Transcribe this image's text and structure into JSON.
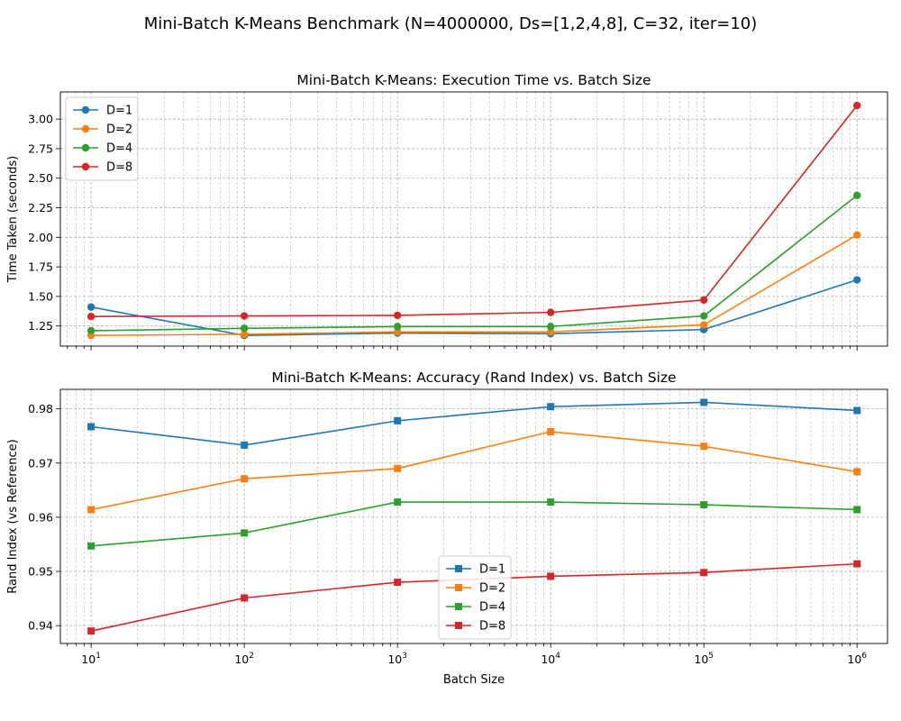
{
  "figure": {
    "suptitle": "Mini-Batch K-Means Benchmark (N=4000000, Ds=[1,2,4,8], C=32, iter=10)"
  },
  "chart_data": [
    {
      "type": "line",
      "title": "Mini-Batch K-Means: Execution Time vs. Batch Size",
      "xlabel": "",
      "ylabel": "Time Taken (seconds)",
      "xscale": "log",
      "x": [
        10,
        100,
        1000,
        10000,
        100000,
        1000000
      ],
      "xlim": [
        6.3,
        1580000
      ],
      "ylim": [
        1.08,
        3.23
      ],
      "yticks": [
        1.25,
        1.5,
        1.75,
        2.0,
        2.25,
        2.5,
        2.75,
        3.0
      ],
      "ytick_labels": [
        "1.25",
        "1.50",
        "1.75",
        "2.00",
        "2.25",
        "2.50",
        "2.75",
        "3.00"
      ],
      "xtick_labels_shown": false,
      "marker": "circle",
      "grid": "both (major and minor), dashed",
      "legend_position": "upper-left",
      "series": [
        {
          "name": "D=1",
          "color": "#1f77b4",
          "values": [
            1.41,
            1.17,
            1.19,
            1.185,
            1.22,
            1.64
          ]
        },
        {
          "name": "D=2",
          "color": "#ff7f0e",
          "values": [
            1.17,
            1.18,
            1.2,
            1.2,
            1.26,
            2.02
          ]
        },
        {
          "name": "D=4",
          "color": "#2ca02c",
          "values": [
            1.21,
            1.23,
            1.245,
            1.245,
            1.335,
            2.355
          ]
        },
        {
          "name": "D=8",
          "color": "#d62728",
          "values": [
            1.33,
            1.335,
            1.34,
            1.365,
            1.47,
            3.115
          ]
        }
      ]
    },
    {
      "type": "line",
      "title": "Mini-Batch K-Means: Accuracy (Rand Index) vs. Batch Size",
      "xlabel": "Batch Size",
      "ylabel": "Rand Index (vs Reference)",
      "xscale": "log",
      "x": [
        10,
        100,
        1000,
        10000,
        100000,
        1000000
      ],
      "xlim": [
        6.3,
        1580000
      ],
      "ylim": [
        0.9367,
        0.9836
      ],
      "yticks": [
        0.94,
        0.95,
        0.96,
        0.97,
        0.98
      ],
      "ytick_labels": [
        "0.94",
        "0.95",
        "0.96",
        "0.97",
        "0.98"
      ],
      "xtick_exponents": [
        "1",
        "2",
        "3",
        "4",
        "5",
        "6"
      ],
      "xtick_base": "10",
      "marker": "square",
      "grid": "both (major and minor), dashed",
      "legend_position": "lower-center",
      "series": [
        {
          "name": "D=1",
          "color": "#1f77b4",
          "values": [
            0.9767,
            0.9733,
            0.9778,
            0.9804,
            0.9812,
            0.9797
          ]
        },
        {
          "name": "D=2",
          "color": "#ff7f0e",
          "values": [
            0.9614,
            0.9671,
            0.969,
            0.9758,
            0.9731,
            0.9684
          ]
        },
        {
          "name": "D=4",
          "color": "#2ca02c",
          "values": [
            0.9547,
            0.9571,
            0.9628,
            0.9628,
            0.9623,
            0.9614
          ]
        },
        {
          "name": "D=8",
          "color": "#d62728",
          "values": [
            0.939,
            0.9451,
            0.948,
            0.9491,
            0.9498,
            0.9514
          ]
        }
      ]
    }
  ]
}
